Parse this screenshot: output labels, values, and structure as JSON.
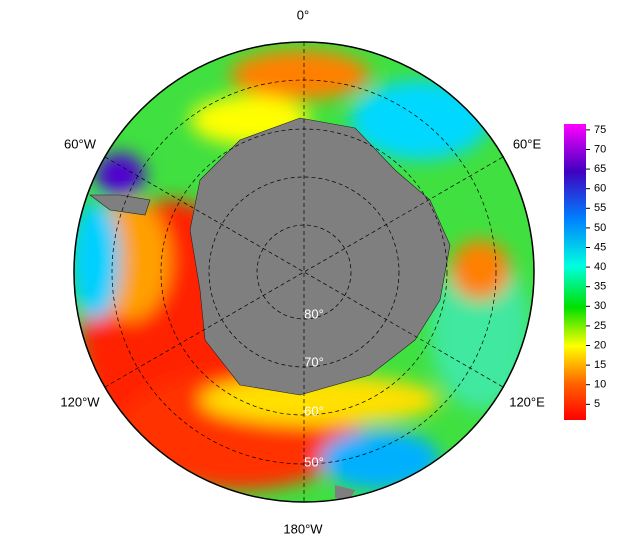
{
  "map": {
    "longitude_labels": [
      "0°",
      "60°W",
      "60°E",
      "120°W",
      "120°E",
      "180°W"
    ],
    "latitude_labels": [
      "80°",
      "70°",
      "60°",
      "50°"
    ],
    "colorbar": {
      "range": [
        1,
        76.5
      ],
      "ticks": [
        5,
        10,
        15,
        20,
        25,
        30,
        35,
        40,
        45,
        50,
        55,
        60,
        65,
        70,
        75
      ]
    }
  }
}
